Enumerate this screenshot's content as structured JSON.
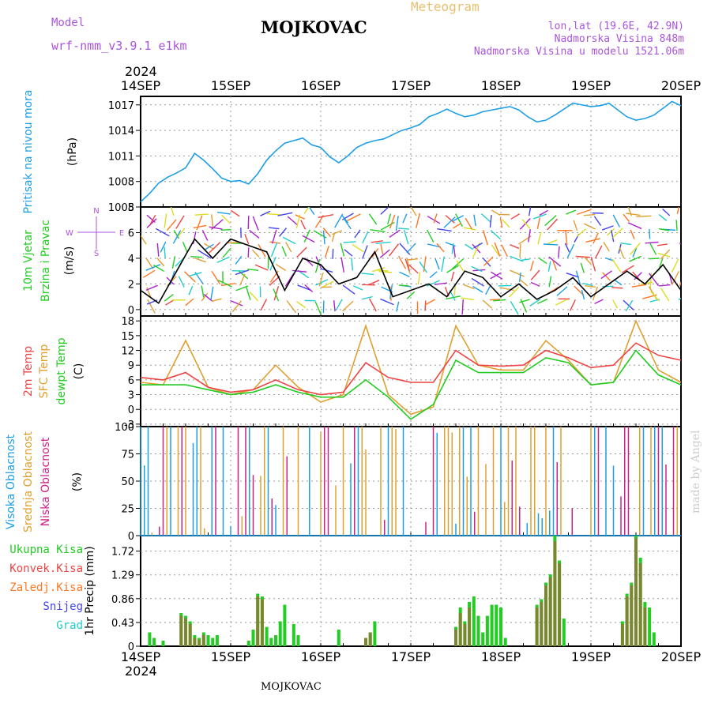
{
  "header": {
    "model_label": "Model",
    "model_name": "wrf-nmm_v3.9.1 e1km",
    "station": "MOJKOVAC",
    "product": "Meteogram",
    "lonlat": "lon,lat (19.6E, 42.9N)",
    "elevation": "Nadmorska Visina 848m",
    "model_elevation": "Nadmorska Visina u modelu 1521.06m",
    "year_top": "2024",
    "year_bottom": "2024",
    "footer_station": "MOJKOVAC",
    "watermark": "made by Angel"
  },
  "colors": {
    "pressure": "#1e9ee6",
    "temp2m": "#ee4444",
    "sfc_temp": "#e0a030",
    "dewpt": "#22cc22",
    "high_cloud": "#1e9ee6",
    "mid_cloud": "#e0a030",
    "low_cloud": "#cc2288",
    "total_rain": "#22cc22",
    "conv_rain": "#ee4444",
    "frozen_rain": "#ff7722",
    "snow": "#4444ee",
    "graupel": "#22cccc",
    "label_purple": "#aa55dd",
    "wind_colors": [
      "#22cc22",
      "#1e9ee6",
      "#4444ee",
      "#aa22cc",
      "#e0a030",
      "#ff7722",
      "#ee4444",
      "#dddd22",
      "#22cccc"
    ]
  },
  "chart_data": [
    {
      "type": "line",
      "panel": "pressure",
      "labels": [
        "Pritisak na nivou mora"
      ],
      "ylabel": "(hPa)",
      "ylim": [
        1005,
        1018
      ],
      "yticks": [
        "1005",
        "1008",
        "1011",
        "1014",
        "1017"
      ],
      "x_days": [
        "14SEP",
        "15SEP",
        "16SEP",
        "17SEP",
        "18SEP",
        "19SEP",
        "20SEP"
      ],
      "series": [
        {
          "name": "Pritisak na nivou mora",
          "x": [
            0,
            0.1,
            0.2,
            0.3,
            0.4,
            0.5,
            0.6,
            0.7,
            0.8,
            0.9,
            1.0,
            1.1,
            1.2,
            1.3,
            1.4,
            1.5,
            1.6,
            1.7,
            1.8,
            1.9,
            2.0,
            2.1,
            2.2,
            2.3,
            2.4,
            2.5,
            2.6,
            2.7,
            2.8,
            2.9,
            3.0,
            3.1,
            3.2,
            3.3,
            3.4,
            3.5,
            3.6,
            3.7,
            3.8,
            3.9,
            4.0,
            4.1,
            4.2,
            4.3,
            4.4,
            4.5,
            4.6,
            4.7,
            4.8,
            4.9,
            5.0,
            5.1,
            5.2,
            5.3,
            5.4,
            5.5,
            5.6,
            5.7,
            5.8,
            5.9,
            6.0
          ],
          "values": [
            1005.6,
            1006.6,
            1007.8,
            1008.5,
            1009.0,
            1009.6,
            1011.3,
            1010.5,
            1009.5,
            1008.4,
            1008.0,
            1008.1,
            1007.7,
            1008.9,
            1010.5,
            1011.6,
            1012.5,
            1012.8,
            1013.1,
            1012.3,
            1012.0,
            1010.9,
            1010.2,
            1011.0,
            1012.0,
            1012.5,
            1012.8,
            1013.0,
            1013.5,
            1014.0,
            1014.3,
            1014.7,
            1015.6,
            1016.0,
            1016.5,
            1016.0,
            1015.6,
            1015.8,
            1016.2,
            1016.4,
            1016.6,
            1016.8,
            1016.4,
            1015.6,
            1015.0,
            1015.2,
            1015.8,
            1016.5,
            1017.2,
            1017.0,
            1016.8,
            1016.9,
            1017.2,
            1016.4,
            1015.6,
            1015.2,
            1015.4,
            1015.8,
            1016.6,
            1017.4,
            1016.9
          ]
        }
      ]
    },
    {
      "type": "line",
      "panel": "wind",
      "labels": [
        "10m Vjetar",
        "Brzina i Pravac"
      ],
      "ylabel": "(m/s)",
      "ylim": [
        -0.5,
        8
      ],
      "yticks": [
        "0",
        "2",
        "4",
        "6",
        "8"
      ],
      "compass": [
        "N",
        "S",
        "W",
        "E"
      ],
      "series": [
        {
          "name": "Brzina",
          "x": [
            0,
            0.2,
            0.4,
            0.6,
            0.8,
            1.0,
            1.2,
            1.4,
            1.6,
            1.8,
            2.0,
            2.2,
            2.4,
            2.6,
            2.8,
            3.0,
            3.2,
            3.4,
            3.6,
            3.8,
            4.0,
            4.2,
            4.4,
            4.6,
            4.8,
            5.0,
            5.2,
            5.4,
            5.6,
            5.8,
            6.0
          ],
          "values": [
            1.5,
            0.5,
            3.0,
            5.5,
            4.0,
            5.5,
            5.0,
            4.5,
            1.5,
            4.0,
            3.5,
            2.0,
            2.5,
            4.5,
            1.0,
            1.5,
            2.0,
            1.0,
            3.0,
            2.5,
            1.0,
            2.0,
            0.8,
            1.5,
            2.5,
            1.0,
            2.0,
            3.0,
            2.0,
            3.5,
            1.5
          ]
        }
      ]
    },
    {
      "type": "line",
      "panel": "temperature",
      "labels": [
        "2m Temp",
        "SFC Temp",
        "dewpt Temp"
      ],
      "ylabel": "(C)",
      "ylim": [
        -3.5,
        19
      ],
      "yticks": [
        "-3",
        "0",
        "3",
        "6",
        "9",
        "12",
        "15",
        "18"
      ],
      "series": [
        {
          "name": "2m Temp",
          "x": [
            0,
            0.25,
            0.5,
            0.75,
            1.0,
            1.25,
            1.5,
            1.75,
            2.0,
            2.25,
            2.5,
            2.75,
            3.0,
            3.25,
            3.5,
            3.75,
            4.0,
            4.25,
            4.5,
            4.75,
            5.0,
            5.25,
            5.5,
            5.75,
            6.0
          ],
          "values": [
            6.5,
            6.0,
            7.5,
            4.5,
            3.5,
            4.0,
            6.0,
            4.0,
            3.0,
            3.5,
            9.5,
            6.5,
            5.5,
            5.5,
            12.0,
            9.0,
            8.8,
            9.0,
            12.0,
            10.5,
            8.5,
            9.0,
            13.5,
            11.0,
            10.0
          ]
        },
        {
          "name": "SFC Temp",
          "x": [
            0,
            0.25,
            0.5,
            0.75,
            1.0,
            1.25,
            1.5,
            1.75,
            2.0,
            2.25,
            2.5,
            2.75,
            3.0,
            3.25,
            3.5,
            3.75,
            4.0,
            4.25,
            4.5,
            4.75,
            5.0,
            5.25,
            5.5,
            5.75,
            6.0
          ],
          "values": [
            5.5,
            5.0,
            14.0,
            4.5,
            3.0,
            4.0,
            9.0,
            4.5,
            1.5,
            3.0,
            17.0,
            3.0,
            -1.0,
            0.5,
            17.0,
            9.0,
            8.0,
            8.0,
            14.0,
            10.0,
            5.0,
            5.5,
            18.0,
            8.0,
            5.5
          ]
        },
        {
          "name": "dewpt Temp",
          "x": [
            0,
            0.25,
            0.5,
            0.75,
            1.0,
            1.25,
            1.5,
            1.75,
            2.0,
            2.25,
            2.5,
            2.75,
            3.0,
            3.25,
            3.5,
            3.75,
            4.0,
            4.25,
            4.5,
            4.75,
            5.0,
            5.25,
            5.5,
            5.75,
            6.0
          ],
          "values": [
            5.0,
            5.0,
            5.0,
            4.0,
            3.0,
            3.5,
            5.0,
            3.5,
            2.5,
            2.5,
            6.0,
            2.5,
            -2.0,
            1.0,
            10.0,
            7.5,
            7.5,
            7.5,
            10.5,
            9.5,
            5.0,
            5.5,
            12.0,
            7.0,
            5.0
          ]
        }
      ]
    },
    {
      "type": "bar",
      "panel": "clouds",
      "labels": [
        "Visoka Oblacnost",
        "Srednja Oblacnost",
        "Niska Oblacnost"
      ],
      "ylabel": "(%)",
      "ylim": [
        0,
        100
      ],
      "yticks": [
        "0",
        "25",
        "50",
        "75",
        "100"
      ],
      "note": "hourly cloud fraction bars across the 6-day period"
    },
    {
      "type": "bar",
      "panel": "precip",
      "labels": [
        "Ukupna Kisa",
        "Konvek.Kisa",
        "Zaledj.Kisa",
        "Snijeg",
        "Grad"
      ],
      "ylabel": "1hr Precip (mm)",
      "ylim": [
        0,
        2.0
      ],
      "yticks": [
        "0",
        "0.43",
        "0.86",
        "1.29",
        "1.72"
      ],
      "series": [
        {
          "name": "Ukupna Kisa",
          "x": [
            0.1,
            0.15,
            0.25,
            0.45,
            0.5,
            0.55,
            0.6,
            0.65,
            0.7,
            0.75,
            0.8,
            0.85,
            1.2,
            1.25,
            1.3,
            1.35,
            1.4,
            1.45,
            1.5,
            1.55,
            1.6,
            1.7,
            1.75,
            2.2,
            2.5,
            2.55,
            2.6,
            3.5,
            3.55,
            3.6,
            3.65,
            3.7,
            3.75,
            3.8,
            3.85,
            3.9,
            3.95,
            4.0,
            4.05,
            4.4,
            4.45,
            4.5,
            4.55,
            4.6,
            4.65,
            4.7,
            5.35,
            5.4,
            5.45,
            5.5,
            5.55,
            5.6,
            5.65,
            5.7
          ],
          "values": [
            0.25,
            0.15,
            0.1,
            0.6,
            0.55,
            0.45,
            0.2,
            0.15,
            0.25,
            0.2,
            0.15,
            0.2,
            0.1,
            0.3,
            0.95,
            0.9,
            0.35,
            0.15,
            0.2,
            0.45,
            0.75,
            0.4,
            0.2,
            0.3,
            0.15,
            0.25,
            0.45,
            0.35,
            0.7,
            0.45,
            0.8,
            0.9,
            0.55,
            0.25,
            0.55,
            0.75,
            0.75,
            0.7,
            0.15,
            0.75,
            0.85,
            1.15,
            1.3,
            2.0,
            1.55,
            0.5,
            0.45,
            0.95,
            1.15,
            2.0,
            1.6,
            0.8,
            0.7,
            0.25
          ]
        },
        {
          "name": "Konvek.Kisa",
          "x": [
            0.45,
            0.5,
            0.55,
            0.6,
            0.65,
            0.7,
            1.3,
            1.35,
            2.5,
            2.55,
            3.5,
            3.55,
            3.6,
            3.65,
            4.4,
            4.45,
            4.5,
            4.55,
            4.6,
            4.65,
            5.35,
            5.4,
            5.45,
            5.5,
            5.55,
            5.6
          ],
          "values": [
            0.55,
            0.5,
            0.4,
            0.15,
            0.12,
            0.2,
            0.9,
            0.85,
            0.15,
            0.25,
            0.3,
            0.6,
            0.4,
            0.7,
            0.7,
            0.8,
            1.1,
            1.25,
            1.9,
            1.5,
            0.4,
            0.9,
            1.1,
            1.95,
            1.5,
            0.7
          ]
        }
      ]
    }
  ]
}
